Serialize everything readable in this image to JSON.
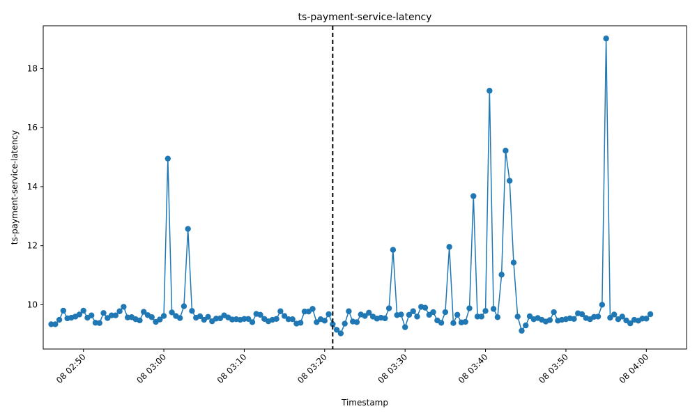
{
  "chart_data": {
    "type": "line",
    "title": "ts-payment-service-latency",
    "xlabel": "Timestamp",
    "ylabel": "ts-payment-service-latency",
    "x_tick_labels": [
      "08 02:50",
      "08 03:00",
      "08 03:10",
      "08 03:20",
      "08 03:30",
      "08 03:40",
      "08 03:50",
      "08 04:00"
    ],
    "y_ticks": [
      10,
      12,
      14,
      16,
      18
    ],
    "ylim": [
      8.5,
      19.45
    ],
    "x_start": "08 02:46",
    "x_interval_seconds": 30,
    "x_range": [
      "08 02:45",
      "08 04:05"
    ],
    "vline_at": "08 03:21",
    "marker": "circle",
    "grid": false,
    "color": "#1f77b4",
    "values": [
      9.34,
      9.34,
      9.49,
      9.8,
      9.54,
      9.56,
      9.6,
      9.67,
      9.8,
      9.56,
      9.64,
      9.39,
      9.38,
      9.72,
      9.55,
      9.64,
      9.64,
      9.78,
      9.93,
      9.57,
      9.58,
      9.51,
      9.47,
      9.76,
      9.65,
      9.58,
      9.42,
      9.5,
      9.62,
      14.95,
      9.74,
      9.62,
      9.55,
      9.95,
      12.57,
      9.79,
      9.56,
      9.61,
      9.49,
      9.59,
      9.44,
      9.53,
      9.54,
      9.64,
      9.57,
      9.5,
      9.51,
      9.49,
      9.52,
      9.52,
      9.41,
      9.69,
      9.66,
      9.52,
      9.44,
      9.49,
      9.52,
      9.78,
      9.62,
      9.51,
      9.51,
      9.36,
      9.39,
      9.77,
      9.77,
      9.86,
      9.41,
      9.51,
      9.46,
      9.68,
      9.34,
      9.15,
      9.03,
      9.36,
      9.78,
      9.43,
      9.41,
      9.67,
      9.62,
      9.73,
      9.6,
      9.53,
      9.56,
      9.54,
      9.88,
      11.86,
      9.65,
      9.67,
      9.24,
      9.66,
      9.78,
      9.6,
      9.93,
      9.9,
      9.66,
      9.75,
      9.47,
      9.39,
      9.75,
      11.96,
      9.38,
      9.66,
      9.4,
      9.42,
      9.88,
      13.68,
      9.6,
      9.6,
      9.79,
      17.25,
      9.86,
      9.58,
      11.02,
      15.22,
      14.2,
      11.43,
      9.6,
      9.12,
      9.3,
      9.61,
      9.51,
      9.55,
      9.49,
      9.43,
      9.48,
      9.75,
      9.46,
      9.49,
      9.51,
      9.54,
      9.52,
      9.71,
      9.68,
      9.55,
      9.51,
      9.59,
      9.6,
      10.0,
      19.02,
      9.56,
      9.67,
      9.51,
      9.6,
      9.47,
      9.37,
      9.49,
      9.46,
      9.53,
      9.53,
      9.68
    ]
  }
}
